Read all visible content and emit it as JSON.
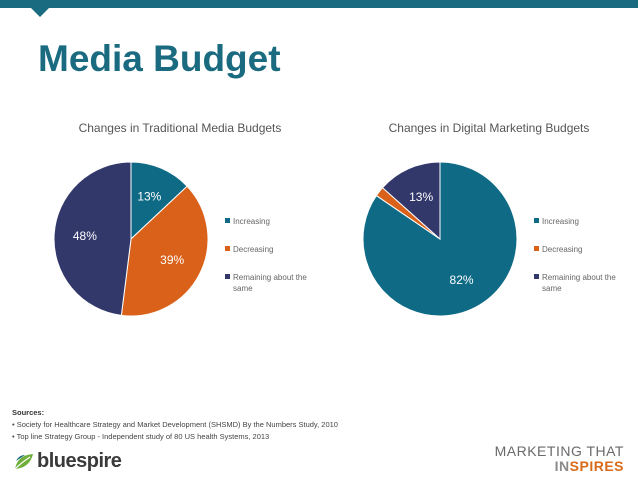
{
  "header": {
    "title": "Media Budget"
  },
  "colors": {
    "increasing": "#0f6a85",
    "decreasing": "#d9611a",
    "same": "#33386b",
    "brand": "#1a6a80"
  },
  "chart_data": [
    {
      "type": "pie",
      "title": "Changes in Traditional Media Budgets",
      "categories": [
        "Increasing",
        "Decreasing",
        "Remaining about the same"
      ],
      "values": [
        13,
        39,
        48
      ],
      "labels": [
        "13%",
        "39%",
        "48%"
      ],
      "legend": [
        "Increasing",
        "Decreasing",
        "Remaining about the same"
      ],
      "legend_placement": "right"
    },
    {
      "type": "pie",
      "title": "Changes in Digital Marketing Budgets",
      "categories": [
        "Increasing",
        "Decreasing",
        "Remaining about the same"
      ],
      "values": [
        82,
        2,
        13
      ],
      "labels": [
        "82%",
        "",
        "13%"
      ],
      "legend": [
        "Increasing",
        "Decreasing",
        "Remaining about the same"
      ],
      "legend_placement": "right"
    }
  ],
  "sources": {
    "heading": "Sources:",
    "items": [
      "• Society for Healthcare Strategy and Market Development (SHSMD) By the Numbers Study, 2010",
      "• Top line Strategy Group - Independent study of 80 US health Systems, 2013"
    ]
  },
  "footer": {
    "logo_text": "bluespire",
    "tagline_line1": "MARKETING THAT",
    "tagline_line2_a": "IN",
    "tagline_line2_b": "SPIRES"
  }
}
